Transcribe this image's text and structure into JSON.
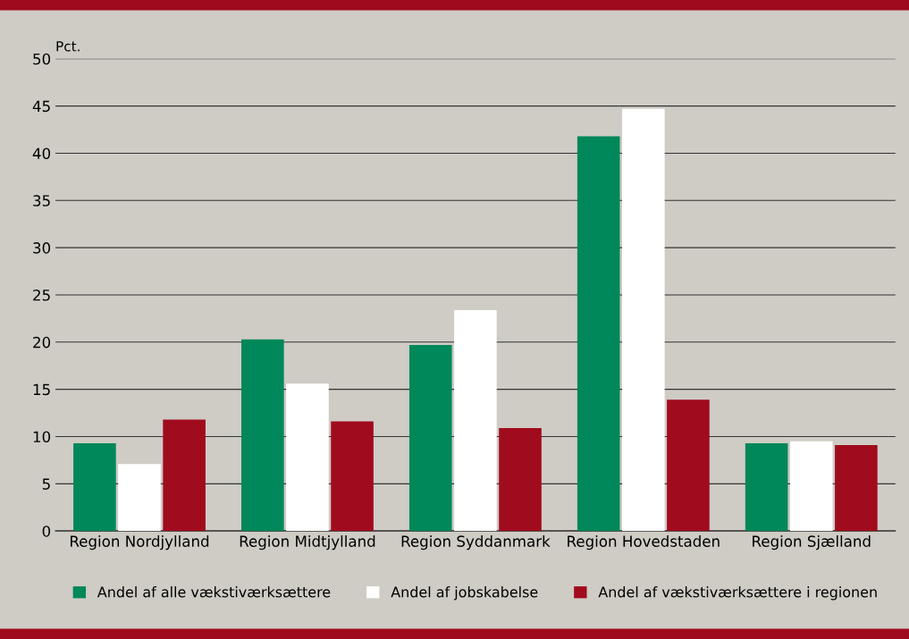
{
  "chart_data": {
    "type": "bar",
    "ylabel": "Pct.",
    "categories": [
      "Region Nordjylland",
      "Region Midtjylland",
      "Region Syddanmark",
      "Region Hovedstaden",
      "Region Sjælland"
    ],
    "series": [
      {
        "name": "Andel af alle vækstiværksættere",
        "color": "#00875a",
        "values": [
          9.3,
          20.3,
          19.7,
          41.8,
          9.3
        ]
      },
      {
        "name": "Andel af jobskabelse",
        "color": "#ffffff",
        "values": [
          7.1,
          15.6,
          23.4,
          44.7,
          9.5
        ]
      },
      {
        "name": "Andel af vækstiværksættere i regionen",
        "color": "#a10b1e",
        "values": [
          11.8,
          11.6,
          10.9,
          13.9,
          9.1
        ]
      }
    ],
    "ylim": [
      0,
      50
    ],
    "yticks": [
      0,
      5,
      10,
      15,
      20,
      25,
      30,
      35,
      40,
      45,
      50
    ],
    "grid": "y",
    "legend": "bottom"
  }
}
